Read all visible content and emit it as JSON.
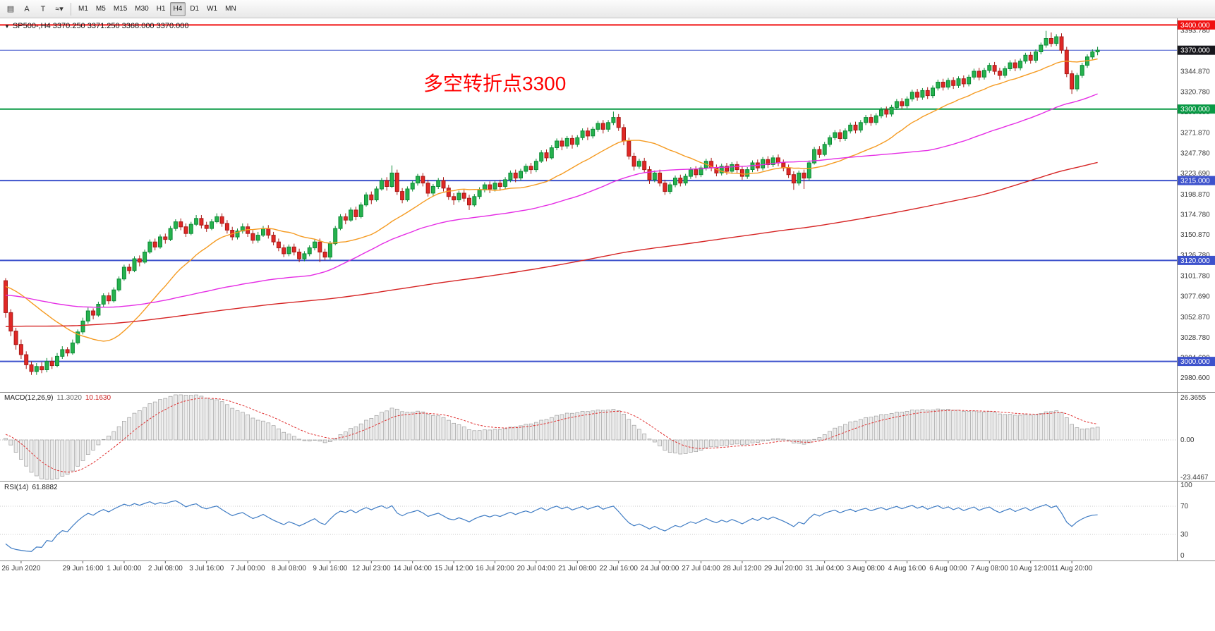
{
  "toolbar": {
    "icon_buttons": [
      {
        "name": "chart-settings",
        "glyph": "▤"
      },
      {
        "name": "cursor-mode",
        "glyph": "A"
      },
      {
        "name": "text-tool",
        "glyph": "T"
      },
      {
        "name": "line-studies",
        "glyph": "≈",
        "dropdown_glyph": "▾"
      }
    ],
    "timeframes": [
      "M1",
      "M5",
      "M15",
      "M30",
      "H1",
      "H4",
      "D1",
      "W1",
      "MN"
    ],
    "active_timeframe": "H4"
  },
  "chart": {
    "symbol": "SP500-,H4",
    "ohlc_text": "3370.250 3371.250 3368.000 3370.000",
    "annotation": {
      "text": "多空转折点3300",
      "color": "#ff0000"
    },
    "hlines": [
      {
        "price": 3400.0,
        "label": "3400.000",
        "color": "#f01010",
        "tag_bg": "#f01010",
        "width": 2
      },
      {
        "price": 3370.0,
        "label": "3370.000",
        "color": "#3d52cc",
        "tag_bg": "#17171c",
        "width": 1
      },
      {
        "price": 3300.0,
        "label": "3300.000",
        "color": "#089944",
        "tag_bg": "#089944",
        "width": 2
      },
      {
        "price": 3215.0,
        "label": "3215.000",
        "color": "#3d52cc",
        "tag_bg": "#3d52cc",
        "width": 2
      },
      {
        "price": 3120.0,
        "label": "3120.000",
        "color": "#3d52cc",
        "tag_bg": "#3d52cc",
        "width": 2
      },
      {
        "price": 3000.0,
        "label": "3000.000",
        "color": "#3d52cc",
        "tag_bg": "#3d52cc",
        "width": 2
      }
    ],
    "price_axis_labels": [
      "3393.780",
      "3369.690",
      "3344.870",
      "3320.780",
      "3296.690",
      "3271.870",
      "3247.780",
      "3223.690",
      "3198.870",
      "3174.780",
      "3150.870",
      "3126.780",
      "3101.780",
      "3077.690",
      "3052.870",
      "3028.780",
      "3004.690",
      "2980.600"
    ],
    "colors": {
      "bull": "#26b24e",
      "bull_border": "#0c8a36",
      "bear": "#e02826",
      "bear_border": "#a81a17",
      "ma_fast": "#f59b22",
      "ma_mid": "#e52de5",
      "ma_slow": "#d62424",
      "background": "#ffffff",
      "axis_text": "#3c3c3c"
    }
  },
  "chart_data": {
    "type": "candlestick",
    "title": "SP500-,H4",
    "y_range": [
      2967,
      3402
    ],
    "x_labels": [
      [
        3,
        "26 Jun 2020"
      ],
      [
        15,
        "29 Jun 16:00"
      ],
      [
        23,
        "1 Jul 00:00"
      ],
      [
        31,
        "2 Jul 08:00"
      ],
      [
        39,
        "3 Jul 16:00"
      ],
      [
        47,
        "7 Jul 00:00"
      ],
      [
        55,
        "8 Jul 08:00"
      ],
      [
        63,
        "9 Jul 16:00"
      ],
      [
        71,
        "12 Jul 23:00"
      ],
      [
        79,
        "14 Jul 04:00"
      ],
      [
        87,
        "15 Jul 12:00"
      ],
      [
        95,
        "16 Jul 20:00"
      ],
      [
        103,
        "20 Jul 04:00"
      ],
      [
        111,
        "21 Jul 08:00"
      ],
      [
        119,
        "22 Jul 16:00"
      ],
      [
        127,
        "24 Jul 00:00"
      ],
      [
        135,
        "27 Jul 04:00"
      ],
      [
        143,
        "28 Jul 12:00"
      ],
      [
        151,
        "29 Jul 20:00"
      ],
      [
        159,
        "31 Jul 04:00"
      ],
      [
        167,
        "3 Aug 08:00"
      ],
      [
        175,
        "4 Aug 16:00"
      ],
      [
        183,
        "6 Aug 00:00"
      ],
      [
        191,
        "7 Aug 08:00"
      ],
      [
        199,
        "10 Aug 12:00"
      ],
      [
        207,
        "11 Aug 20:00"
      ]
    ],
    "candles": [
      [
        3096,
        3099,
        3052,
        3058
      ],
      [
        3058,
        3062,
        3030,
        3036
      ],
      [
        3036,
        3040,
        3014,
        3020
      ],
      [
        3020,
        3026,
        3003,
        3008
      ],
      [
        3008,
        3012,
        2991,
        2996
      ],
      [
        2996,
        3000,
        2984,
        2988
      ],
      [
        2988,
        2998,
        2984,
        2994
      ],
      [
        2994,
        2999,
        2986,
        2990
      ],
      [
        2990,
        3004,
        2987,
        3000
      ],
      [
        3000,
        3005,
        2991,
        2995
      ],
      [
        2995,
        3010,
        2993,
        3006
      ],
      [
        3006,
        3018,
        3003,
        3014
      ],
      [
        3014,
        3017,
        3006,
        3010
      ],
      [
        3010,
        3026,
        3008,
        3022
      ],
      [
        3022,
        3038,
        3020,
        3035
      ],
      [
        3035,
        3052,
        3032,
        3048
      ],
      [
        3048,
        3064,
        3045,
        3060
      ],
      [
        3060,
        3063,
        3050,
        3055
      ],
      [
        3055,
        3071,
        3053,
        3068
      ],
      [
        3068,
        3081,
        3065,
        3078
      ],
      [
        3078,
        3082,
        3068,
        3072
      ],
      [
        3072,
        3088,
        3070,
        3085
      ],
      [
        3085,
        3101,
        3083,
        3098
      ],
      [
        3098,
        3115,
        3096,
        3112
      ],
      [
        3112,
        3116,
        3104,
        3108
      ],
      [
        3108,
        3125,
        3106,
        3122
      ],
      [
        3122,
        3126,
        3113,
        3118
      ],
      [
        3118,
        3133,
        3116,
        3130
      ],
      [
        3130,
        3145,
        3128,
        3142
      ],
      [
        3142,
        3146,
        3132,
        3136
      ],
      [
        3136,
        3151,
        3134,
        3148
      ],
      [
        3148,
        3152,
        3140,
        3145
      ],
      [
        3145,
        3161,
        3143,
        3158
      ],
      [
        3158,
        3169,
        3155,
        3166
      ],
      [
        3166,
        3170,
        3156,
        3160
      ],
      [
        3160,
        3164,
        3148,
        3152
      ],
      [
        3152,
        3166,
        3150,
        3163
      ],
      [
        3163,
        3174,
        3161,
        3170
      ],
      [
        3170,
        3174,
        3158,
        3162
      ],
      [
        3162,
        3166,
        3154,
        3158
      ],
      [
        3158,
        3169,
        3156,
        3166
      ],
      [
        3166,
        3176,
        3164,
        3172
      ],
      [
        3172,
        3176,
        3160,
        3164
      ],
      [
        3164,
        3168,
        3152,
        3156
      ],
      [
        3156,
        3160,
        3144,
        3148
      ],
      [
        3148,
        3158,
        3145,
        3155
      ],
      [
        3155,
        3164,
        3152,
        3160
      ],
      [
        3160,
        3164,
        3148,
        3152
      ],
      [
        3152,
        3156,
        3140,
        3144
      ],
      [
        3144,
        3154,
        3141,
        3150
      ],
      [
        3150,
        3161,
        3148,
        3158
      ],
      [
        3158,
        3162,
        3146,
        3150
      ],
      [
        3150,
        3154,
        3138,
        3142
      ],
      [
        3142,
        3146,
        3131,
        3135
      ],
      [
        3135,
        3139,
        3124,
        3128
      ],
      [
        3128,
        3139,
        3125,
        3136
      ],
      [
        3136,
        3140,
        3126,
        3130
      ],
      [
        3130,
        3134,
        3118,
        3122
      ],
      [
        3122,
        3131,
        3119,
        3128
      ],
      [
        3128,
        3138,
        3125,
        3135
      ],
      [
        3135,
        3145,
        3132,
        3142
      ],
      [
        3142,
        3146,
        3118,
        3130
      ],
      [
        3130,
        3134,
        3120,
        3124
      ],
      [
        3124,
        3143,
        3121,
        3140
      ],
      [
        3140,
        3161,
        3138,
        3158
      ],
      [
        3158,
        3175,
        3156,
        3172
      ],
      [
        3172,
        3176,
        3163,
        3168
      ],
      [
        3168,
        3183,
        3166,
        3180
      ],
      [
        3180,
        3184,
        3168,
        3172
      ],
      [
        3172,
        3189,
        3170,
        3186
      ],
      [
        3186,
        3201,
        3184,
        3198
      ],
      [
        3198,
        3202,
        3187,
        3192
      ],
      [
        3192,
        3208,
        3190,
        3205
      ],
      [
        3205,
        3218,
        3203,
        3215
      ],
      [
        3215,
        3219,
        3203,
        3208
      ],
      [
        3208,
        3233,
        3206,
        3224
      ],
      [
        3224,
        3228,
        3198,
        3202
      ],
      [
        3202,
        3206,
        3188,
        3192
      ],
      [
        3192,
        3208,
        3190,
        3205
      ],
      [
        3205,
        3215,
        3202,
        3212
      ],
      [
        3212,
        3223,
        3209,
        3220
      ],
      [
        3220,
        3224,
        3208,
        3212
      ],
      [
        3212,
        3216,
        3196,
        3200
      ],
      [
        3200,
        3211,
        3197,
        3208
      ],
      [
        3208,
        3218,
        3205,
        3215
      ],
      [
        3215,
        3219,
        3202,
        3206
      ],
      [
        3206,
        3210,
        3192,
        3196
      ],
      [
        3196,
        3200,
        3186,
        3192
      ],
      [
        3192,
        3203,
        3189,
        3200
      ],
      [
        3200,
        3204,
        3190,
        3194
      ],
      [
        3194,
        3198,
        3180,
        3186
      ],
      [
        3186,
        3199,
        3184,
        3196
      ],
      [
        3196,
        3207,
        3193,
        3204
      ],
      [
        3204,
        3213,
        3201,
        3210
      ],
      [
        3210,
        3214,
        3200,
        3205
      ],
      [
        3205,
        3215,
        3202,
        3212
      ],
      [
        3212,
        3216,
        3203,
        3208
      ],
      [
        3208,
        3219,
        3205,
        3216
      ],
      [
        3216,
        3227,
        3213,
        3224
      ],
      [
        3224,
        3228,
        3213,
        3218
      ],
      [
        3218,
        3229,
        3215,
        3226
      ],
      [
        3226,
        3235,
        3223,
        3232
      ],
      [
        3232,
        3236,
        3223,
        3228
      ],
      [
        3228,
        3241,
        3225,
        3238
      ],
      [
        3238,
        3251,
        3236,
        3248
      ],
      [
        3248,
        3252,
        3238,
        3242
      ],
      [
        3242,
        3257,
        3240,
        3254
      ],
      [
        3254,
        3265,
        3251,
        3262
      ],
      [
        3262,
        3266,
        3251,
        3256
      ],
      [
        3256,
        3268,
        3253,
        3265
      ],
      [
        3265,
        3269,
        3253,
        3258
      ],
      [
        3258,
        3269,
        3255,
        3266
      ],
      [
        3266,
        3277,
        3263,
        3274
      ],
      [
        3274,
        3278,
        3263,
        3268
      ],
      [
        3268,
        3279,
        3265,
        3276
      ],
      [
        3276,
        3286,
        3273,
        3283
      ],
      [
        3283,
        3287,
        3271,
        3276
      ],
      [
        3276,
        3287,
        3273,
        3284
      ],
      [
        3284,
        3297,
        3281,
        3290
      ],
      [
        3290,
        3294,
        3274,
        3278
      ],
      [
        3278,
        3282,
        3257,
        3262
      ],
      [
        3262,
        3266,
        3240,
        3244
      ],
      [
        3244,
        3248,
        3227,
        3232
      ],
      [
        3232,
        3241,
        3229,
        3238
      ],
      [
        3238,
        3242,
        3224,
        3228
      ],
      [
        3228,
        3232,
        3211,
        3216
      ],
      [
        3216,
        3227,
        3213,
        3224
      ],
      [
        3224,
        3228,
        3208,
        3212
      ],
      [
        3212,
        3216,
        3198,
        3202
      ],
      [
        3202,
        3213,
        3199,
        3210
      ],
      [
        3210,
        3221,
        3207,
        3218
      ],
      [
        3218,
        3222,
        3208,
        3212
      ],
      [
        3212,
        3223,
        3209,
        3220
      ],
      [
        3220,
        3231,
        3217,
        3228
      ],
      [
        3228,
        3232,
        3218,
        3222
      ],
      [
        3222,
        3233,
        3219,
        3230
      ],
      [
        3230,
        3241,
        3227,
        3238
      ],
      [
        3238,
        3242,
        3226,
        3230
      ],
      [
        3230,
        3234,
        3220,
        3224
      ],
      [
        3224,
        3235,
        3221,
        3232
      ],
      [
        3232,
        3236,
        3222,
        3226
      ],
      [
        3226,
        3237,
        3223,
        3234
      ],
      [
        3234,
        3238,
        3224,
        3228
      ],
      [
        3228,
        3232,
        3216,
        3220
      ],
      [
        3220,
        3231,
        3217,
        3228
      ],
      [
        3228,
        3239,
        3225,
        3236
      ],
      [
        3236,
        3240,
        3226,
        3230
      ],
      [
        3230,
        3243,
        3227,
        3240
      ],
      [
        3240,
        3244,
        3230,
        3234
      ],
      [
        3234,
        3245,
        3231,
        3242
      ],
      [
        3242,
        3246,
        3232,
        3236
      ],
      [
        3236,
        3240,
        3226,
        3230
      ],
      [
        3230,
        3234,
        3218,
        3222
      ],
      [
        3222,
        3226,
        3204,
        3212
      ],
      [
        3212,
        3227,
        3209,
        3224
      ],
      [
        3224,
        3228,
        3205,
        3218
      ],
      [
        3218,
        3239,
        3215,
        3236
      ],
      [
        3236,
        3255,
        3234,
        3252
      ],
      [
        3252,
        3256,
        3242,
        3246
      ],
      [
        3246,
        3261,
        3244,
        3258
      ],
      [
        3258,
        3269,
        3255,
        3266
      ],
      [
        3266,
        3275,
        3263,
        3272
      ],
      [
        3272,
        3276,
        3261,
        3265
      ],
      [
        3265,
        3277,
        3262,
        3274
      ],
      [
        3274,
        3284,
        3271,
        3281
      ],
      [
        3281,
        3285,
        3271,
        3275
      ],
      [
        3275,
        3287,
        3272,
        3284
      ],
      [
        3284,
        3293,
        3281,
        3290
      ],
      [
        3290,
        3294,
        3280,
        3284
      ],
      [
        3284,
        3295,
        3281,
        3292
      ],
      [
        3292,
        3302,
        3289,
        3299
      ],
      [
        3299,
        3303,
        3290,
        3294
      ],
      [
        3294,
        3305,
        3291,
        3302
      ],
      [
        3302,
        3312,
        3299,
        3309
      ],
      [
        3309,
        3313,
        3300,
        3304
      ],
      [
        3304,
        3315,
        3301,
        3312
      ],
      [
        3312,
        3323,
        3309,
        3320
      ],
      [
        3320,
        3324,
        3310,
        3314
      ],
      [
        3314,
        3325,
        3311,
        3322
      ],
      [
        3322,
        3326,
        3312,
        3316
      ],
      [
        3316,
        3328,
        3313,
        3325
      ],
      [
        3325,
        3335,
        3322,
        3332
      ],
      [
        3332,
        3336,
        3322,
        3326
      ],
      [
        3326,
        3337,
        3323,
        3334
      ],
      [
        3334,
        3338,
        3324,
        3328
      ],
      [
        3328,
        3339,
        3325,
        3336
      ],
      [
        3336,
        3340,
        3326,
        3330
      ],
      [
        3330,
        3341,
        3327,
        3338
      ],
      [
        3338,
        3348,
        3335,
        3345
      ],
      [
        3345,
        3349,
        3334,
        3338
      ],
      [
        3338,
        3349,
        3335,
        3346
      ],
      [
        3346,
        3355,
        3343,
        3352
      ],
      [
        3352,
        3356,
        3341,
        3345
      ],
      [
        3345,
        3349,
        3335,
        3340
      ],
      [
        3340,
        3351,
        3337,
        3348
      ],
      [
        3348,
        3358,
        3345,
        3355
      ],
      [
        3355,
        3359,
        3345,
        3349
      ],
      [
        3349,
        3360,
        3346,
        3357
      ],
      [
        3357,
        3367,
        3354,
        3364
      ],
      [
        3364,
        3368,
        3354,
        3358
      ],
      [
        3358,
        3371,
        3355,
        3368
      ],
      [
        3368,
        3379,
        3365,
        3376
      ],
      [
        3376,
        3393,
        3373,
        3384
      ],
      [
        3384,
        3391,
        3374,
        3378
      ],
      [
        3378,
        3389,
        3375,
        3386
      ],
      [
        3386,
        3390,
        3366,
        3370
      ],
      [
        3370,
        3374,
        3338,
        3342
      ],
      [
        3342,
        3346,
        3318,
        3324
      ],
      [
        3324,
        3343,
        3321,
        3340
      ],
      [
        3340,
        3355,
        3337,
        3352
      ],
      [
        3352,
        3365,
        3349,
        3362
      ],
      [
        3362,
        3371,
        3359,
        3368
      ],
      [
        3368,
        3374,
        3364,
        3370
      ]
    ]
  },
  "macd": {
    "label": "MACD(12,26,9)",
    "main": "11.3020",
    "signal": "10.1630",
    "fast": 12,
    "slow": 26,
    "signal_period": 9,
    "scale_labels": [
      "26.3655",
      "0.00",
      "-23.4467"
    ],
    "histogram_color": "#ececec",
    "histogram_border": "#9e9e9e",
    "signal_color": "#e03030"
  },
  "rsi": {
    "label": "RSI(14)",
    "value": "61.8882",
    "period": 14,
    "scale_labels": [
      "100",
      "70",
      "30",
      "0"
    ],
    "levels": [
      70,
      30
    ],
    "line_color": "#3f7cc4"
  }
}
